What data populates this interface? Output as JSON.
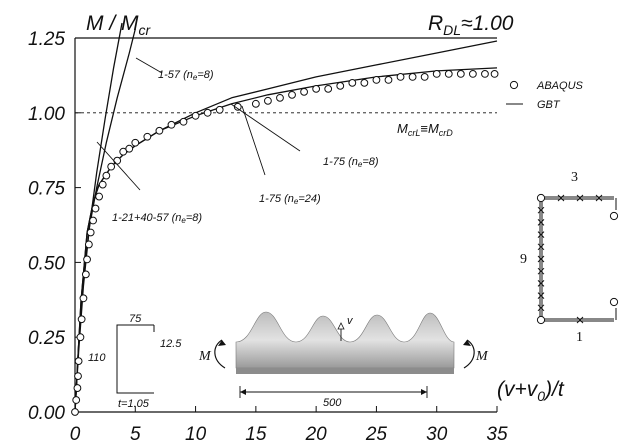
{
  "chart_data": {
    "type": "line",
    "title": "",
    "ylabel": "M / M",
    "ylabel_sub": "cr",
    "xlabel_left": "(v+v",
    "xlabel_sub": "0",
    "xlabel_right": ")/t",
    "rdl_label": "R",
    "rdl_sub": "DL",
    "rdl_value": "≈1.00",
    "xlim": [
      0,
      35
    ],
    "ylim": [
      0,
      1.25
    ],
    "xticks": [
      0,
      5,
      10,
      15,
      20,
      25,
      30,
      35
    ],
    "xtick_labels": [
      "0",
      "5",
      "10",
      "15",
      "20",
      "25",
      "30",
      "35"
    ],
    "yticks": [
      0,
      0.25,
      0.5,
      0.75,
      1.0,
      1.25
    ],
    "ytick_labels": [
      "0.00",
      "0.25",
      "0.50",
      "0.75",
      "1.00",
      "1.25"
    ],
    "reference_line": {
      "y": 1.0
    },
    "reference_label": {
      "left": "M",
      "left_sub": "crL",
      "mid": "≡M",
      "right_sub": "crD"
    },
    "legend": [
      {
        "label": "ABAQUS",
        "marker": "circle"
      },
      {
        "label": "GBT",
        "marker": "line"
      }
    ],
    "series": [
      {
        "label": "1-57 (ne=8)",
        "kind": "line",
        "points": [
          [
            0,
            0
          ],
          [
            0.3,
            0.2
          ],
          [
            0.7,
            0.42
          ],
          [
            1.2,
            0.62
          ],
          [
            1.8,
            0.8
          ],
          [
            2.5,
            0.98
          ],
          [
            3.2,
            1.15
          ],
          [
            3.9,
            1.3
          ]
        ]
      },
      {
        "label": "1-21+40-57 (ne=8)",
        "kind": "line",
        "points": [
          [
            0,
            0
          ],
          [
            0.3,
            0.22
          ],
          [
            0.7,
            0.45
          ],
          [
            1.2,
            0.62
          ],
          [
            1.8,
            0.75
          ],
          [
            2.6,
            0.9
          ],
          [
            3.5,
            1.05
          ],
          [
            4.5,
            1.2
          ],
          [
            5.0,
            1.28
          ]
        ]
      },
      {
        "label": "1-75 (ne=8)",
        "kind": "line",
        "points": [
          [
            0,
            0
          ],
          [
            0.2,
            0.15
          ],
          [
            0.5,
            0.37
          ],
          [
            1.0,
            0.6
          ],
          [
            1.5,
            0.7
          ],
          [
            2,
            0.76
          ],
          [
            3,
            0.82
          ],
          [
            4,
            0.86
          ],
          [
            5,
            0.89
          ],
          [
            7,
            0.94
          ],
          [
            10,
            1.0
          ],
          [
            13,
            1.05
          ],
          [
            16,
            1.08
          ],
          [
            20,
            1.12
          ],
          [
            25,
            1.16
          ],
          [
            30,
            1.2
          ],
          [
            35,
            1.24
          ]
        ]
      },
      {
        "label": "1-75 (ne=24)",
        "kind": "line",
        "points": [
          [
            0,
            0
          ],
          [
            0.2,
            0.15
          ],
          [
            0.5,
            0.37
          ],
          [
            1.0,
            0.6
          ],
          [
            1.5,
            0.7
          ],
          [
            2,
            0.76
          ],
          [
            3,
            0.82
          ],
          [
            4,
            0.86
          ],
          [
            5,
            0.89
          ],
          [
            7,
            0.94
          ],
          [
            10,
            0.99
          ],
          [
            13,
            1.03
          ],
          [
            16,
            1.06
          ],
          [
            20,
            1.09
          ],
          [
            25,
            1.12
          ],
          [
            30,
            1.14
          ],
          [
            35,
            1.15
          ]
        ]
      },
      {
        "label": "ABAQUS",
        "kind": "scatter",
        "points": [
          [
            0,
            0
          ],
          [
            0.1,
            0.04
          ],
          [
            0.2,
            0.08
          ],
          [
            0.25,
            0.12
          ],
          [
            0.3,
            0.17
          ],
          [
            0.45,
            0.25
          ],
          [
            0.55,
            0.31
          ],
          [
            0.7,
            0.38
          ],
          [
            0.9,
            0.46
          ],
          [
            1.0,
            0.51
          ],
          [
            1.15,
            0.56
          ],
          [
            1.3,
            0.6
          ],
          [
            1.5,
            0.64
          ],
          [
            1.7,
            0.68
          ],
          [
            2.0,
            0.72
          ],
          [
            2.3,
            0.76
          ],
          [
            2.6,
            0.79
          ],
          [
            3.0,
            0.82
          ],
          [
            3.5,
            0.84
          ],
          [
            4.0,
            0.87
          ],
          [
            4.5,
            0.88
          ],
          [
            5.0,
            0.9
          ],
          [
            6.0,
            0.92
          ],
          [
            7.0,
            0.94
          ],
          [
            8.0,
            0.96
          ],
          [
            9.0,
            0.97
          ],
          [
            10.0,
            0.99
          ],
          [
            11.0,
            1.0
          ],
          [
            12.0,
            1.01
          ],
          [
            13.5,
            1.02
          ],
          [
            15.0,
            1.03
          ],
          [
            16.0,
            1.04
          ],
          [
            17.0,
            1.05
          ],
          [
            18.0,
            1.06
          ],
          [
            19.0,
            1.07
          ],
          [
            20.0,
            1.08
          ],
          [
            21.0,
            1.08
          ],
          [
            22.0,
            1.09
          ],
          [
            23.0,
            1.1
          ],
          [
            24.0,
            1.1
          ],
          [
            25.0,
            1.11
          ],
          [
            26.0,
            1.11
          ],
          [
            27.0,
            1.12
          ],
          [
            28.0,
            1.12
          ],
          [
            29.0,
            1.12
          ],
          [
            30.0,
            1.13
          ],
          [
            31.0,
            1.13
          ],
          [
            32.0,
            1.13
          ],
          [
            33.0,
            1.13
          ],
          [
            34.0,
            1.13
          ],
          [
            34.8,
            1.13
          ]
        ]
      }
    ],
    "annotations": [
      {
        "name": "ann-1-57",
        "prefix": "1-57 (n",
        "sub": "e",
        "suffix": "=8)"
      },
      {
        "name": "ann-1-21-40-57",
        "prefix": "1-21+40-57 (n",
        "sub": "e",
        "suffix": "=8)"
      },
      {
        "name": "ann-1-75-ne8",
        "prefix": "1-75 (n",
        "sub": "e",
        "suffix": "=8)"
      },
      {
        "name": "ann-1-75-ne24",
        "prefix": "1-75 (n",
        "sub": "e",
        "suffix": "=24)"
      }
    ],
    "inset_section": {
      "top": "75",
      "lip": "12.5",
      "web": "110",
      "thickness": "t=1.05"
    },
    "inset_beam": {
      "moment_left": "M",
      "moment_right": "M",
      "disp": "v",
      "length": "500"
    },
    "inset_nodes": {
      "top_count": "3",
      "web_count": "9",
      "bottom_count": "1"
    }
  }
}
